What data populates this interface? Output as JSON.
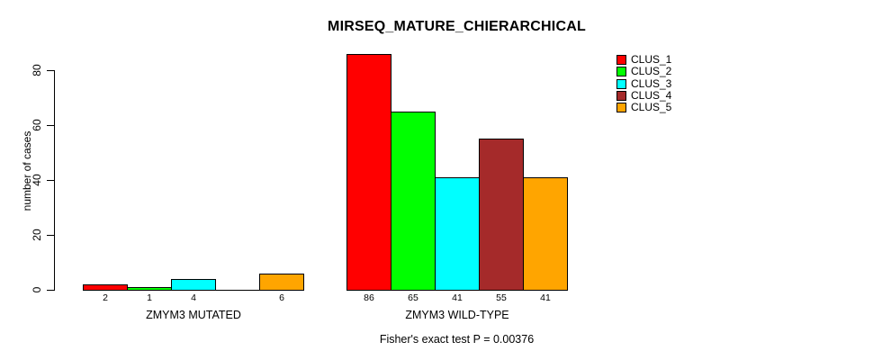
{
  "title": "MIRSEQ_MATURE_CHIERARCHICAL",
  "y_axis": {
    "label": "number of cases",
    "ticks": [
      "0",
      "20",
      "40",
      "60",
      "80"
    ]
  },
  "footer": "Fisher's exact test P = 0.00376",
  "chart_data": {
    "type": "bar",
    "title": "MIRSEQ_MATURE_CHIERARCHICAL",
    "xlabel": "",
    "ylabel": "number of cases",
    "ylim": [
      0,
      88
    ],
    "grid": false,
    "legend_position": "right",
    "categories": [
      "ZMYM3 MUTATED",
      "ZMYM3 WILD-TYPE"
    ],
    "series": [
      {
        "name": "CLUS_1",
        "color": "#FF0000",
        "values": [
          2,
          86
        ]
      },
      {
        "name": "CLUS_2",
        "color": "#00FF00",
        "values": [
          1,
          65
        ]
      },
      {
        "name": "CLUS_3",
        "color": "#00FFFF",
        "values": [
          4,
          41
        ]
      },
      {
        "name": "CLUS_4",
        "color": "#A52A2A",
        "values": [
          0,
          55
        ]
      },
      {
        "name": "CLUS_5",
        "color": "#FFA500",
        "values": [
          6,
          41
        ]
      }
    ],
    "bar_value_labels": [
      [
        "2",
        "1",
        "4",
        "",
        "6"
      ],
      [
        "86",
        "65",
        "41",
        "55",
        "41"
      ]
    ],
    "annotation": "Fisher's exact test P = 0.00376"
  }
}
